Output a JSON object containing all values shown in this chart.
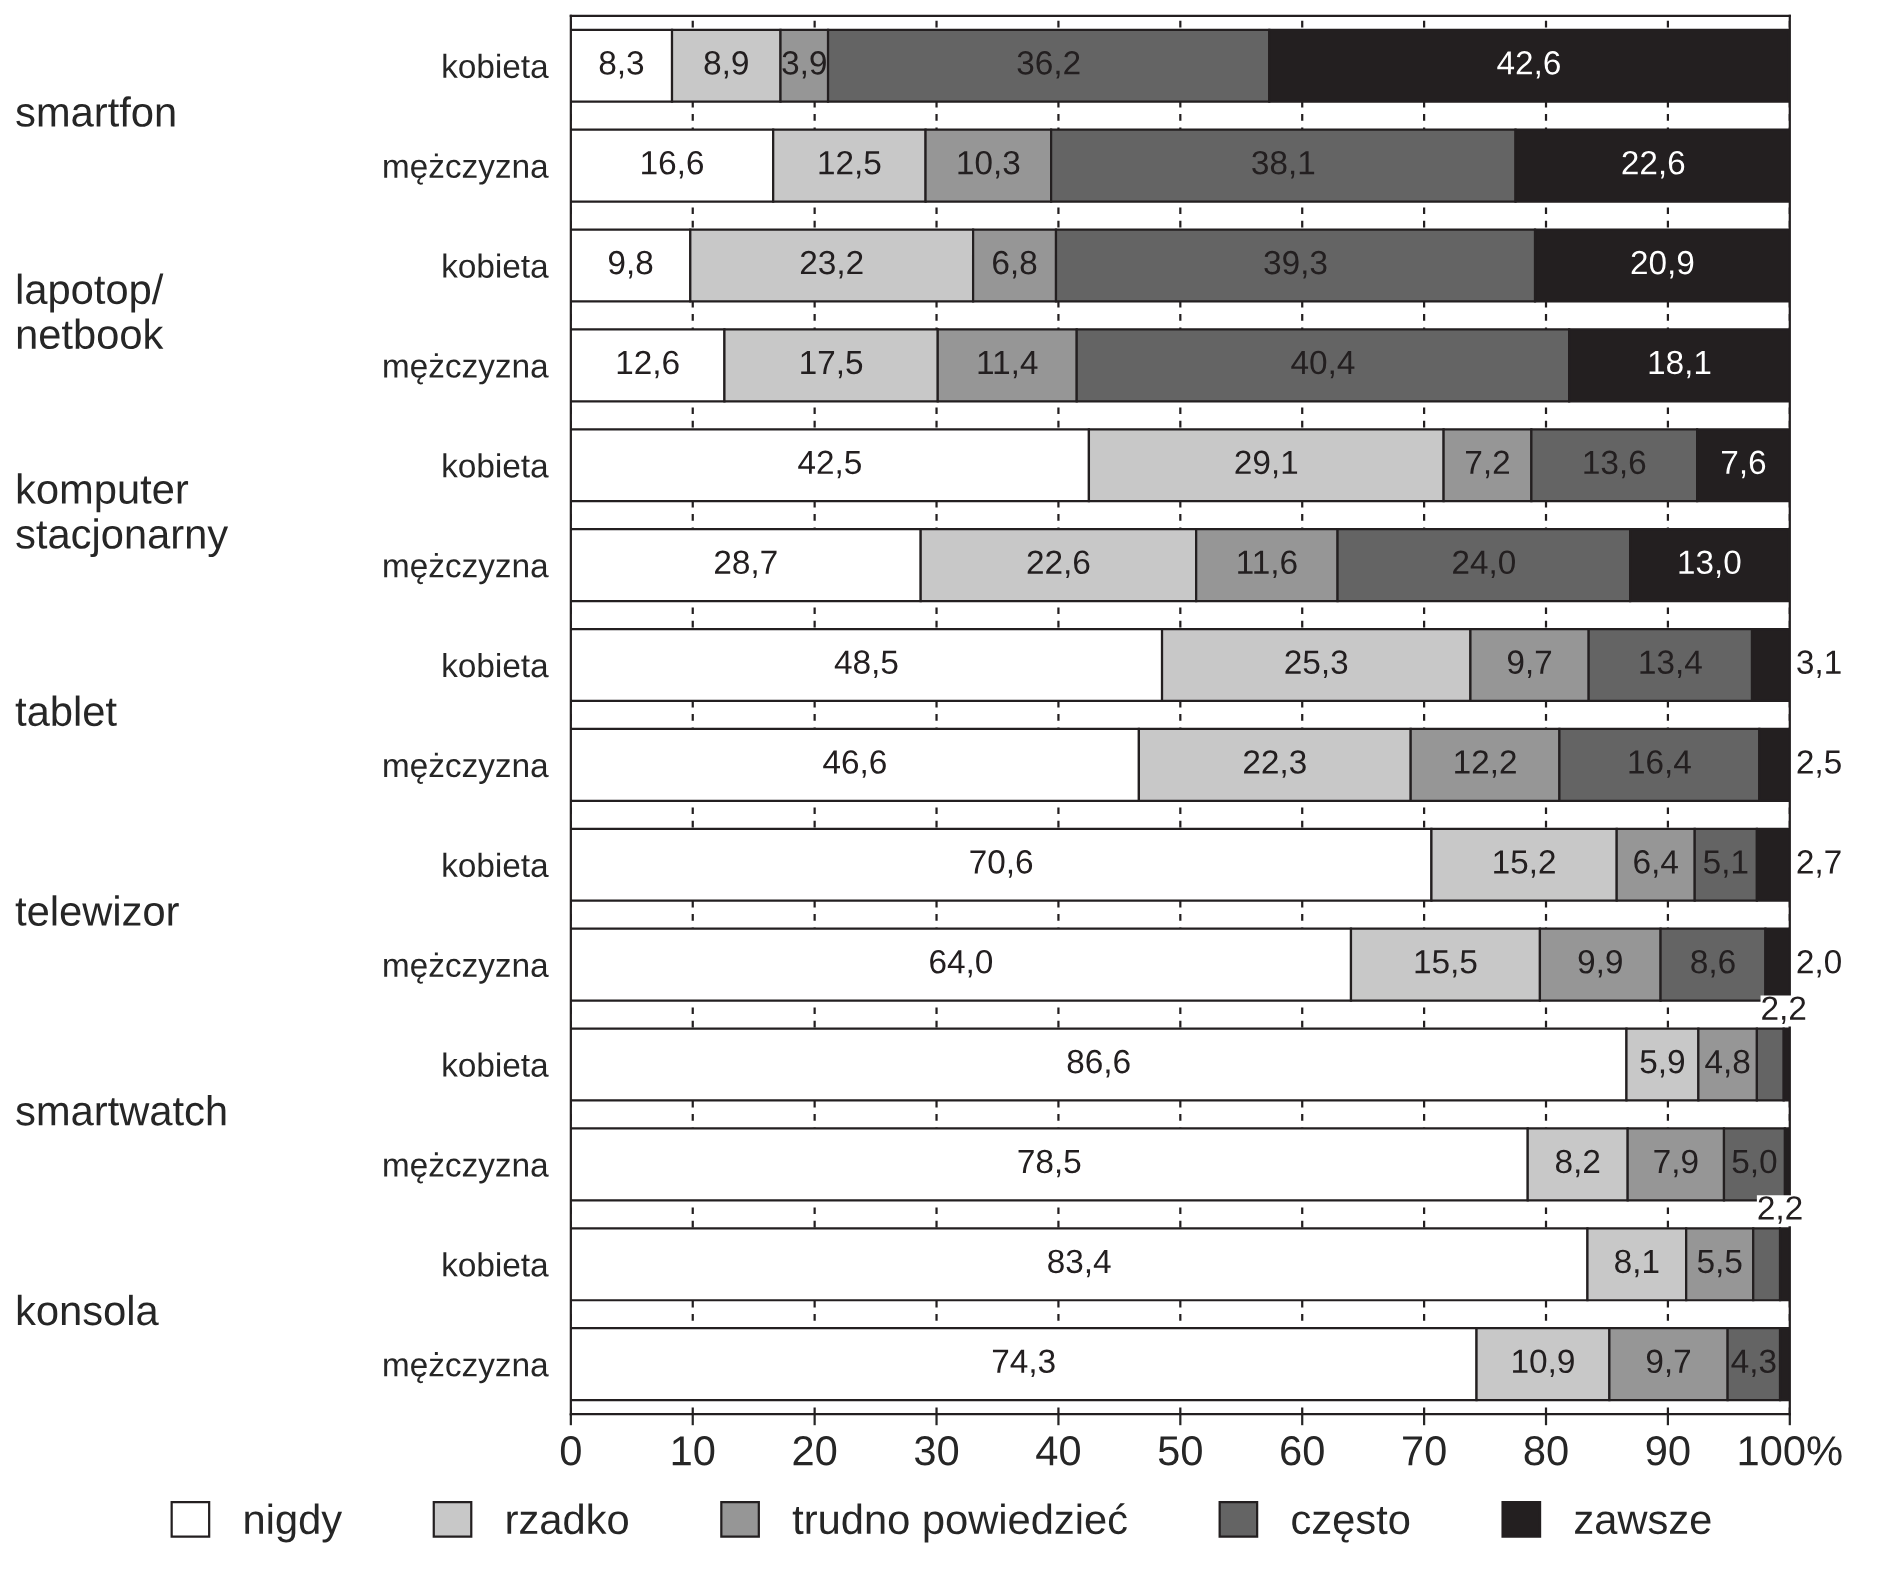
{
  "chart_data": {
    "type": "bar",
    "orientation": "horizontal",
    "stacked": true,
    "categories": [
      "kobieta",
      "mężczyzna",
      "kobieta",
      "mężczyzna",
      "kobieta",
      "mężczyzna",
      "kobieta",
      "mężczyzna",
      "kobieta",
      "mężczyzna",
      "kobieta",
      "mężczyzna",
      "kobieta",
      "mężczyzna"
    ],
    "annotations": [
      "smartfon",
      "lapotop/\nnetbook",
      "komputer\nstacjonarny",
      "tablet",
      "telewizor",
      "smartwatch",
      "konsola"
    ],
    "series": [
      {
        "name": "nigdy",
        "color": "#ffffff",
        "values": [
          8.3,
          16.6,
          9.8,
          12.6,
          42.5,
          28.7,
          48.5,
          46.6,
          70.6,
          64.0,
          86.6,
          78.5,
          83.4,
          74.3
        ],
        "value_labels": [
          "8,3",
          "16,6",
          "9,8",
          "12,6",
          "42,5",
          "28,7",
          "48,5",
          "46,6",
          "70,6",
          "64,0",
          "86,6",
          "78,5",
          "83,4",
          "74,3"
        ]
      },
      {
        "name": "rzadko",
        "color": "#c8c8c8",
        "values": [
          8.9,
          12.5,
          23.2,
          17.5,
          29.1,
          22.6,
          25.3,
          22.3,
          15.2,
          15.5,
          5.9,
          8.2,
          8.1,
          10.9
        ],
        "value_labels": [
          "8,9",
          "12,5",
          "23,2",
          "17,5",
          "29,1",
          "22,6",
          "25,3",
          "22,3",
          "15,2",
          "15,5",
          "5,9",
          "8,2",
          "8,1",
          "10,9"
        ]
      },
      {
        "name": "trudno powiedzieć",
        "color": "#969696",
        "values": [
          3.9,
          10.3,
          6.8,
          11.4,
          7.2,
          11.6,
          9.7,
          12.2,
          6.4,
          9.9,
          4.8,
          7.9,
          5.5,
          9.7
        ],
        "value_labels": [
          "3,9",
          "10,3",
          "6,8",
          "11,4",
          "7,2",
          "11,6",
          "9,7",
          "12,2",
          "6,4",
          "9,9",
          "4,8",
          "7,9",
          "5,5",
          "9,7"
        ]
      },
      {
        "name": "często",
        "color": "#646464",
        "values": [
          36.2,
          38.1,
          39.3,
          40.4,
          13.6,
          24.0,
          13.4,
          16.4,
          5.1,
          8.6,
          2.2,
          5.0,
          2.2,
          4.3
        ],
        "value_labels": [
          "36,2",
          "38,1",
          "39,3",
          "40,4",
          "13,6",
          "24,0",
          "13,4",
          "16,4",
          "5,1",
          "8,6",
          "2,2",
          "5,0",
          "2,2",
          "4,3"
        ]
      },
      {
        "name": "zawsze",
        "color": "#231f20",
        "values": [
          42.6,
          22.6,
          20.9,
          18.1,
          7.6,
          13.0,
          3.1,
          2.5,
          2.7,
          2.0,
          0.5,
          0.4,
          0.8,
          0.8
        ],
        "value_labels": [
          "42,6",
          "22,6",
          "20,9",
          "18,1",
          "7,6",
          "13,0",
          "3,1",
          "2,5",
          "2,7",
          "2,0",
          null,
          null,
          null,
          null
        ]
      }
    ],
    "xlim": [
      0,
      100
    ],
    "xticks": [
      0,
      10,
      20,
      30,
      40,
      50,
      60,
      70,
      80,
      90,
      {
        "value": 100,
        "label": "100%"
      }
    ],
    "grid": "x",
    "legend": "bottom"
  }
}
